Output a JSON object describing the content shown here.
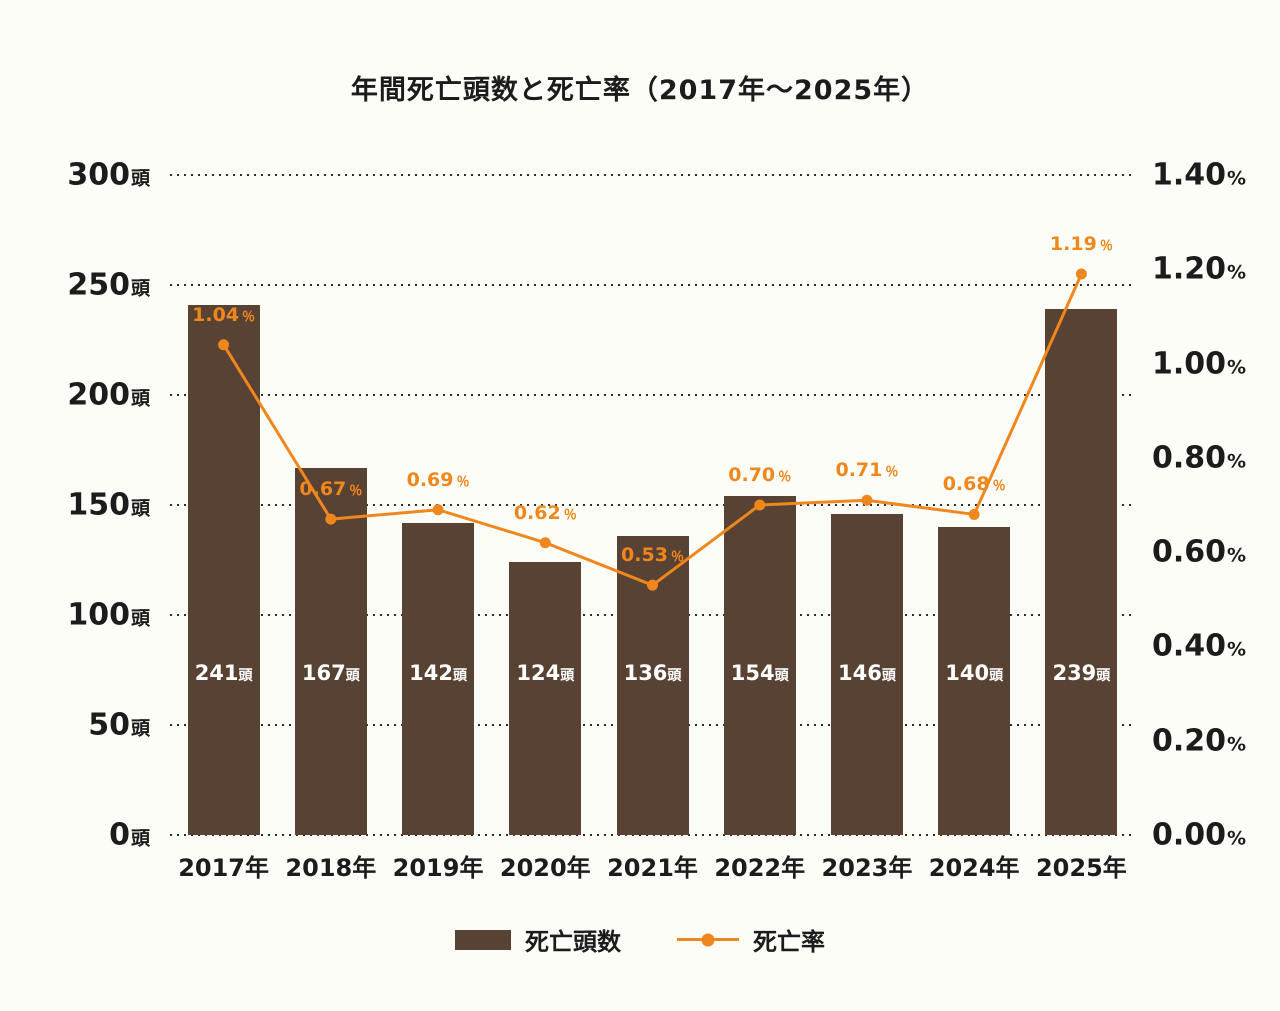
{
  "chart_data": {
    "type": "bar",
    "combo": "bar+line",
    "title": "年間死亡頭数と死亡率（2017年〜2025年）",
    "categories": [
      "2017年",
      "2018年",
      "2019年",
      "2020年",
      "2021年",
      "2022年",
      "2023年",
      "2024年",
      "2025年"
    ],
    "series": [
      {
        "name": "死亡頭数",
        "type": "bar",
        "values": [
          241,
          167,
          142,
          124,
          136,
          154,
          146,
          140,
          239
        ],
        "unit": "頭",
        "color": "#584233",
        "value_labels": [
          "241頭",
          "167頭",
          "142頭",
          "124頭",
          "136頭",
          "154頭",
          "146頭",
          "140頭",
          "239頭"
        ]
      },
      {
        "name": "死亡率",
        "type": "line",
        "values": [
          1.04,
          0.67,
          0.69,
          0.62,
          0.53,
          0.7,
          0.71,
          0.68,
          1.19
        ],
        "unit": "%",
        "color": "#f0871d",
        "value_labels": [
          "1.04％",
          "0.67％",
          "0.69％",
          "0.62％",
          "0.53％",
          "0.70％",
          "0.71％",
          "0.68％",
          "1.19％"
        ]
      }
    ],
    "left_axis": {
      "min": 0,
      "max": 300,
      "step": 50,
      "unit": "頭",
      "ticks": [
        300,
        250,
        200,
        150,
        100,
        50,
        0
      ]
    },
    "right_axis": {
      "min": 0,
      "max": 1.4,
      "step": 0.2,
      "unit": "%",
      "ticks": [
        "1.40",
        "1.20",
        "1.00",
        "0.80",
        "0.60",
        "0.40",
        "0.20",
        "0.00"
      ]
    },
    "grid": "dotted-horizontal",
    "legend_position": "bottom",
    "background_color": "#fdfdf8",
    "text_color": "#1c1c1c"
  }
}
